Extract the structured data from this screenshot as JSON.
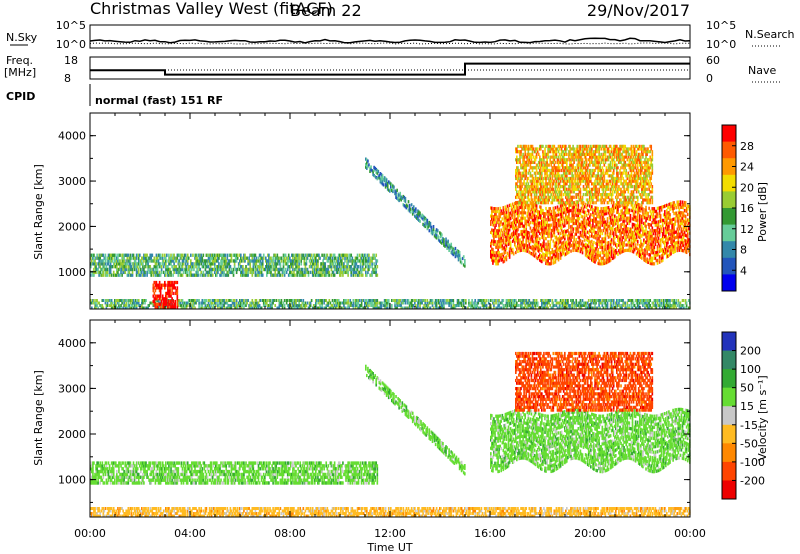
{
  "header": {
    "station": "Christmas Valley West (fitACF)",
    "beam": "Beam 22",
    "date": "29/Nov/2017"
  },
  "noise_panel": {
    "left_label": "N.Sky",
    "right_label": "N.Search",
    "left_ticks": [
      "10^5",
      "10^0"
    ],
    "right_ticks": [
      "10^5",
      "10^0"
    ]
  },
  "freq_panel": {
    "left_label_1": "Freq.",
    "left_label_2": "[MHz]",
    "right_label": "Nave",
    "left_ticks": [
      "18",
      "8"
    ],
    "right_ticks": [
      "60",
      "0"
    ],
    "freq_steps": [
      {
        "from": "00:00",
        "to": "03:00",
        "value": 12
      },
      {
        "from": "03:00",
        "to": "15:00",
        "value": 10
      },
      {
        "from": "15:00",
        "to": "24:00",
        "value": 15
      }
    ]
  },
  "cpid": {
    "label": "CPID",
    "program": "normal (fast) 151 RF"
  },
  "chart_data": [
    {
      "type": "heatmap",
      "ylabel": "Slant Range [km]",
      "xlabel": "",
      "ylim": [
        180,
        4500
      ],
      "yticks": [
        "4000",
        "3000",
        "2000",
        "1000"
      ],
      "xticks": [
        "00:00",
        "04:00",
        "08:00",
        "12:00",
        "16:00",
        "20:00",
        "00:00"
      ],
      "colorbar": {
        "label": "Power [dB]",
        "ticks": [
          "28",
          "24",
          "20",
          "16",
          "12",
          "8",
          "4"
        ],
        "colors": [
          "#ff0000",
          "#ff5a00",
          "#ff9900",
          "#f2dc00",
          "#99cc33",
          "#339933",
          "#66cc99",
          "#3388aa",
          "#2255bb",
          "#0000ee"
        ]
      },
      "regions": [
        {
          "name": "low-range band",
          "t_start": 0.0,
          "t_end": 24.0,
          "r_min": 180,
          "r_max": 400,
          "value_db": 10
        },
        {
          "name": "night echo band",
          "t_start": 0.0,
          "t_end": 11.5,
          "r_min": 900,
          "r_max": 1400,
          "value_db": 9
        },
        {
          "name": "dusk echo streak",
          "t_start": 2.5,
          "t_end": 3.5,
          "r_min": 200,
          "r_max": 800,
          "value_db": 28
        },
        {
          "name": "near-range arc",
          "t_start": 11.0,
          "t_end": 15.0,
          "r_min": 1000,
          "r_max": 3600,
          "value_db": 7
        },
        {
          "name": "afternoon band",
          "t_start": 16.0,
          "t_end": 24.0,
          "r_min": 1300,
          "r_max": 2500,
          "value_db": 22
        },
        {
          "name": "far-range echoes",
          "t_start": 17.0,
          "t_end": 22.5,
          "r_min": 2500,
          "r_max": 3800,
          "value_db": 18
        }
      ]
    },
    {
      "type": "heatmap",
      "ylabel": "Slant Range [km]",
      "xlabel": "Time UT",
      "ylim": [
        180,
        4500
      ],
      "yticks": [
        "4000",
        "3000",
        "2000",
        "1000"
      ],
      "xticks": [
        "00:00",
        "04:00",
        "08:00",
        "12:00",
        "16:00",
        "20:00",
        "00:00"
      ],
      "colorbar": {
        "label": "Velocity [m s⁻¹]",
        "ticks": [
          "200",
          "100",
          "50",
          "15",
          "-15",
          "-50",
          "-100",
          "-200"
        ],
        "colors": [
          "#2233bb",
          "#338866",
          "#33aa33",
          "#66dd33",
          "#c8c8c8",
          "#ffbb22",
          "#ff8800",
          "#ff4400",
          "#ee0000"
        ]
      },
      "regions": [
        {
          "name": "low-range band",
          "t_start": 0.0,
          "t_end": 24.0,
          "r_min": 180,
          "r_max": 400,
          "velocity": -50
        },
        {
          "name": "night echo band",
          "t_start": 0.0,
          "t_end": 11.5,
          "r_min": 900,
          "r_max": 1400,
          "velocity": 15
        },
        {
          "name": "near-range arc",
          "t_start": 11.0,
          "t_end": 15.0,
          "r_min": 1000,
          "r_max": 3600,
          "velocity": 0
        },
        {
          "name": "afternoon band",
          "t_start": 16.0,
          "t_end": 24.0,
          "r_min": 1300,
          "r_max": 2500,
          "velocity": 0
        },
        {
          "name": "far-range echoes",
          "t_start": 17.0,
          "t_end": 22.5,
          "r_min": 2500,
          "r_max": 3800,
          "velocity": -200
        }
      ]
    }
  ]
}
